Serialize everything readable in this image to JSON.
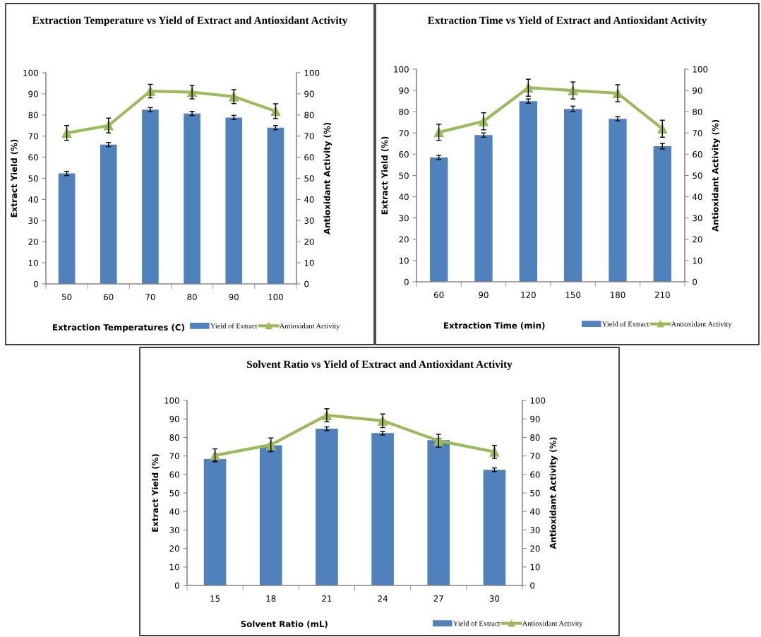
{
  "chart_data": [
    {
      "type": "bar",
      "title": "Extraction Temperature vs Yield of Extract and Antioxidant Activity",
      "xlabel": "Extraction Temperatures (C)",
      "ylabel": "Extract Yield (%)",
      "y2label": "Antioxidant Activity (%)",
      "categories": [
        "50",
        "60",
        "70",
        "80",
        "90",
        "100"
      ],
      "series": [
        {
          "name": "Yield of Extract",
          "type": "bar",
          "color": "#4f81bd",
          "values": [
            52.3,
            66,
            82.5,
            80.7,
            78.8,
            74
          ],
          "errors": [
            1,
            1,
            1,
            1,
            1,
            1
          ]
        },
        {
          "name": "Antioxidant Activity",
          "type": "line",
          "axis": "y2",
          "color": "#9bbb59",
          "marker": "triangle",
          "values": [
            71.5,
            75,
            91.3,
            90.8,
            88.7,
            81.8
          ],
          "errors": [
            3.5,
            3.5,
            3.2,
            3.2,
            3.3,
            3.5
          ]
        }
      ],
      "ylim": [
        0,
        100
      ],
      "yticks": [
        0,
        10,
        20,
        30,
        40,
        50,
        60,
        70,
        80,
        90,
        100
      ],
      "y2lim": [
        0,
        100
      ],
      "y2ticks": [
        0,
        10,
        20,
        30,
        40,
        50,
        60,
        70,
        80,
        90,
        100
      ],
      "grid": false,
      "legend": "bottom right"
    },
    {
      "type": "bar",
      "title": "Extraction Time vs Yield of Extract and Antioxidant Activity",
      "xlabel": "Extraction Time (min)",
      "ylabel": "Extract Yield (%)",
      "y2label": "Antioxidant Activity (%)",
      "categories": [
        "60",
        "90",
        "120",
        "150",
        "180",
        "210"
      ],
      "series": [
        {
          "name": "Yield of Extract",
          "type": "bar",
          "color": "#4f81bd",
          "values": [
            58.5,
            69,
            85,
            81.3,
            76.7,
            63.8
          ],
          "errors": [
            1,
            1,
            1,
            1.3,
            1,
            1.3
          ]
        },
        {
          "name": "Antioxidant Activity",
          "type": "line",
          "axis": "y2",
          "color": "#9bbb59",
          "marker": "triangle",
          "values": [
            70.3,
            75.5,
            91.3,
            90,
            88.7,
            72
          ],
          "errors": [
            3.8,
            4,
            4,
            4,
            4,
            4
          ]
        }
      ],
      "ylim": [
        0,
        100
      ],
      "yticks": [
        0,
        10,
        20,
        30,
        40,
        50,
        60,
        70,
        80,
        90,
        100
      ],
      "y2lim": [
        0,
        100
      ],
      "y2ticks": [
        0,
        10,
        20,
        30,
        40,
        50,
        60,
        70,
        80,
        90,
        100
      ],
      "grid": false,
      "legend": "bottom right"
    },
    {
      "type": "bar",
      "title": "Solvent Ratio vs Yield of Extract and Antioxidant Activity",
      "xlabel": "Solvent Ratio (mL)",
      "ylabel": "Extract Yield (%)",
      "y2label": "Antioxidant Activity (%)",
      "categories": [
        "15",
        "18",
        "21",
        "24",
        "27",
        "30"
      ],
      "series": [
        {
          "name": "Yield of Extract",
          "type": "bar",
          "color": "#4f81bd",
          "values": [
            68.3,
            75.8,
            84.7,
            82.3,
            78.5,
            62.5
          ],
          "errors": [
            1,
            1,
            1,
            1,
            1,
            1
          ]
        },
        {
          "name": "Antioxidant Activity",
          "type": "line",
          "axis": "y2",
          "color": "#9bbb59",
          "marker": "triangle",
          "values": [
            70.3,
            76,
            92,
            89,
            78.2,
            72.2
          ],
          "errors": [
            3.5,
            3.7,
            3.5,
            3.7,
            3.5,
            3.5
          ]
        }
      ],
      "ylim": [
        0,
        100
      ],
      "yticks": [
        0,
        10,
        20,
        30,
        40,
        50,
        60,
        70,
        80,
        90,
        100
      ],
      "y2lim": [
        0,
        100
      ],
      "y2ticks": [
        0,
        10,
        20,
        30,
        40,
        50,
        60,
        70,
        80,
        90,
        100
      ],
      "grid": false,
      "legend": "bottom right"
    }
  ]
}
